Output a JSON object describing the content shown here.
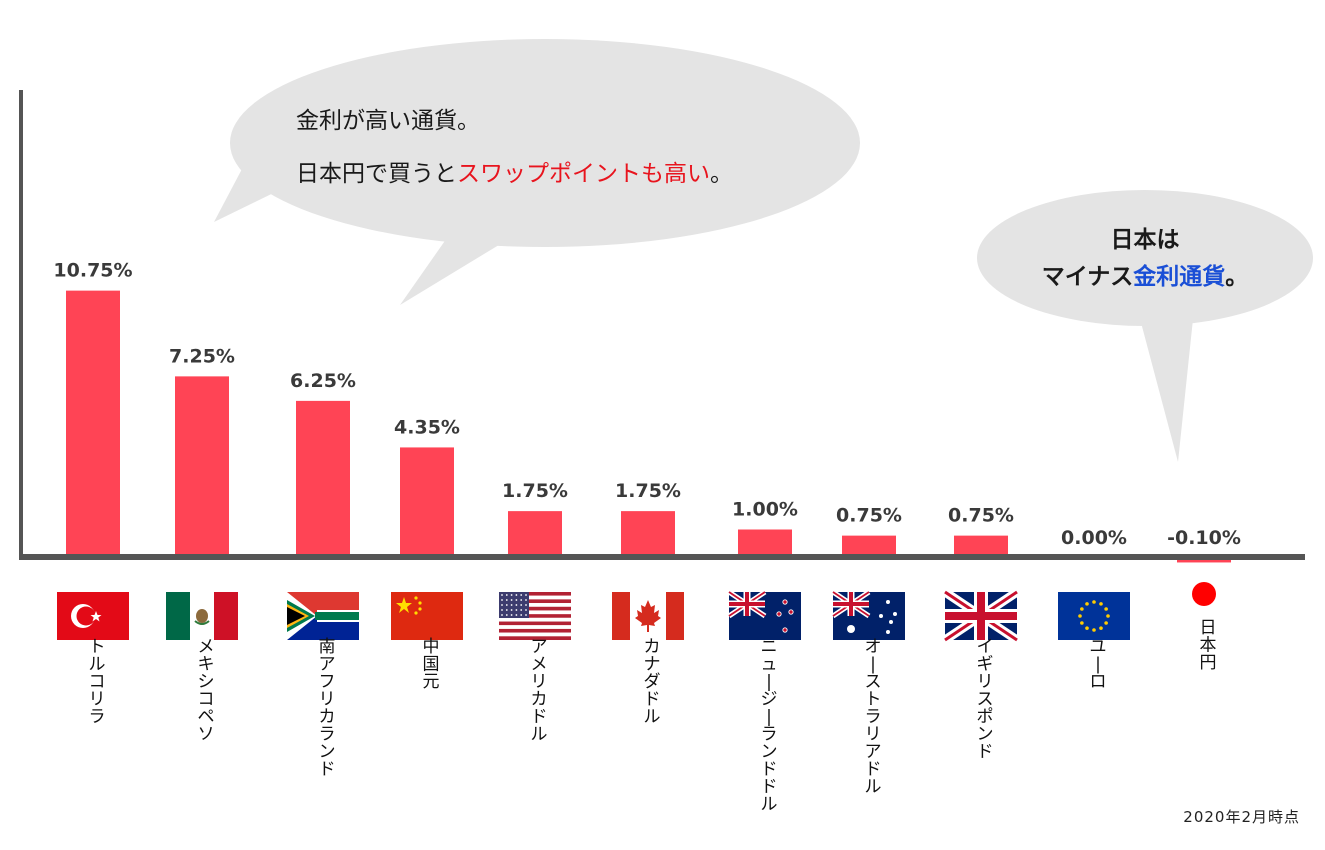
{
  "chart_data": {
    "type": "bar",
    "categories": [
      "トルコリラ",
      "メキシコペソ",
      "南アフリカランド",
      "中国元",
      "アメリカドル",
      "カナダドル",
      "ニュージーランドドル",
      "オーストラリアドル",
      "イギリスポンド",
      "ユーロ",
      "日本円"
    ],
    "values": [
      10.75,
      7.25,
      6.25,
      4.35,
      1.75,
      1.75,
      1.0,
      0.75,
      0.75,
      0.0,
      -0.1
    ],
    "value_labels": [
      "10.75%",
      "7.25%",
      "6.25%",
      "4.35%",
      "1.75%",
      "1.75%",
      "1.00%",
      "0.75%",
      "0.75%",
      "0.00%",
      "-0.10%"
    ],
    "flags": [
      "turkey-flag",
      "mexico-flag",
      "south-africa-flag",
      "china-flag",
      "usa-flag",
      "canada-flag",
      "new-zealand-flag",
      "australia-flag",
      "uk-flag",
      "eu-flag",
      "japan-flag"
    ],
    "bar_color": "#ff4455",
    "axis_color": "#555555",
    "ylim": [
      -0.6,
      14
    ],
    "grid": false
  },
  "bubble_left": {
    "line1": "金利が高い通貨。",
    "line2_prefix": "日本円で買うと",
    "line2_highlight": "スワップポイントも高い",
    "line2_suffix": "。",
    "highlight_color": "#e8141e"
  },
  "bubble_right": {
    "line1": "日本は",
    "line2_prefix": "マイナス",
    "line2_highlight": "金利通貨",
    "line2_suffix": "。",
    "highlight_color": "#1a4fd6"
  },
  "note": "2020年2月時点"
}
